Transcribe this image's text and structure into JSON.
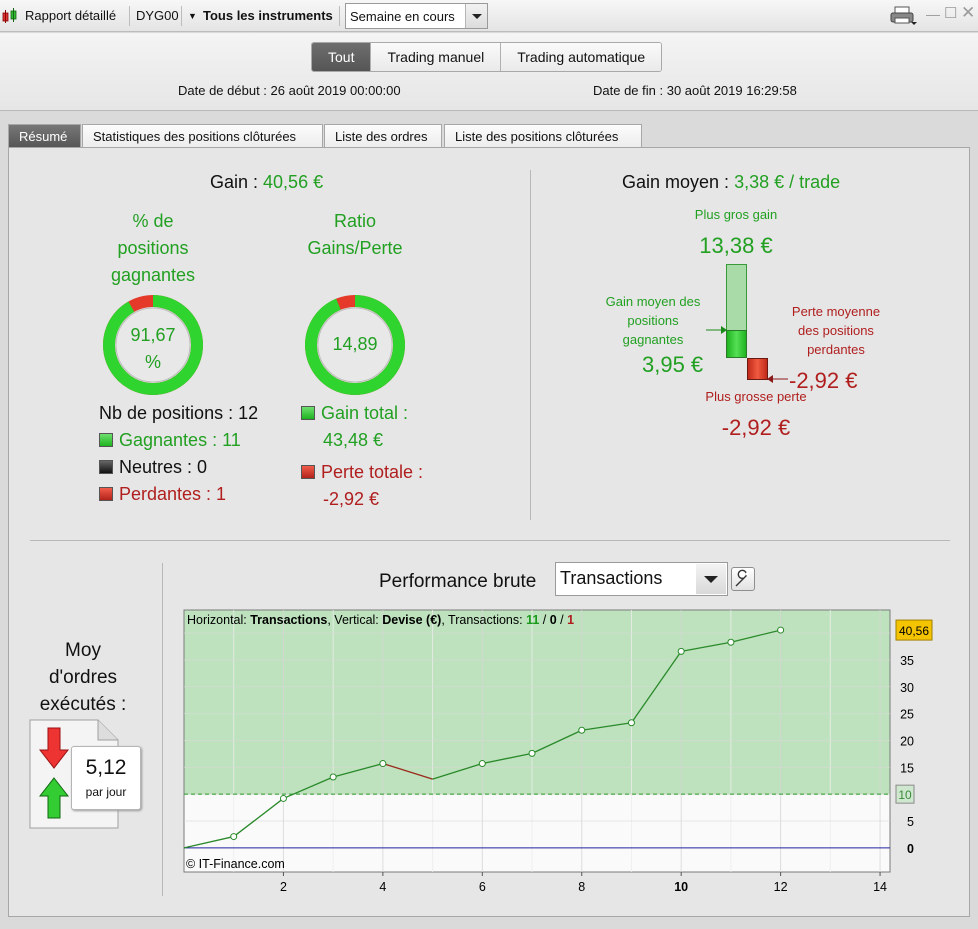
{
  "toolbar": {
    "report_label": "Rapport détaillé",
    "account": "DYG00",
    "instruments": "Tous les instruments",
    "period": "Semaine en cours"
  },
  "mode_tabs": [
    "Tout",
    "Trading manuel",
    "Trading automatique"
  ],
  "dates": {
    "start": "Date de début : 26 août 2019 00:00:00",
    "end": "Date de fin : 30 août 2019 16:29:58"
  },
  "tabs": [
    "Résumé",
    "Statistiques des positions clôturées",
    "Liste des ordres",
    "Liste des positions clôturées"
  ],
  "gain": {
    "label": "Gain : ",
    "value": "40,56 €"
  },
  "win_pct": {
    "title_lines": [
      "% de",
      "positions",
      "gagnantes"
    ],
    "value_lines": [
      "91,67",
      "%"
    ],
    "fraction": 0.9167
  },
  "ratio": {
    "title_lines": [
      "Ratio",
      "Gains/Perte"
    ],
    "value": "14,89",
    "fraction": 0.937
  },
  "counts": {
    "total": "Nb de positions : 12",
    "winners": "Gagnantes : 11",
    "neutral": "Neutres : 0",
    "losers": "Perdantes : 1"
  },
  "totals": {
    "gain_label": "Gain total :",
    "gain_value": "43,48 €",
    "loss_label": "Perte totale :",
    "loss_value": "-2,92 €"
  },
  "avg_gain": {
    "label": "Gain moyen : ",
    "value": "3,38 € / trade"
  },
  "bars": {
    "max_gain_label": "Plus gros gain",
    "max_gain_value": "13,38 €",
    "avg_win_lines": [
      "Gain moyen des",
      "positions",
      "gagnantes"
    ],
    "avg_win_value": "3,95 €",
    "avg_loss_lines": [
      "Perte moyenne",
      "des positions",
      "perdantes"
    ],
    "avg_loss_value": "-2,92 €",
    "max_loss_label": "Plus grosse perte",
    "max_loss_value": "-2,92 €"
  },
  "orders": {
    "title_lines": [
      "Moy",
      "d'ordres",
      "exécutés :"
    ],
    "value": "5,12",
    "unit": "par jour"
  },
  "perf": {
    "title": "Performance brute",
    "select": "Transactions"
  },
  "chart_data": {
    "type": "line",
    "header_parts": [
      "Horizontal: ",
      "Transactions",
      ", Vertical: ",
      "Devise (€)",
      ", Transactions: ",
      "11",
      " / ",
      "0",
      " / ",
      "1"
    ],
    "x": [
      0,
      1,
      2,
      3,
      4,
      5,
      6,
      7,
      8,
      9,
      10,
      11,
      12
    ],
    "y": [
      0,
      2.1,
      9.2,
      13.2,
      15.7,
      12.8,
      15.7,
      17.6,
      21.9,
      23.3,
      36.6,
      38.3,
      40.56
    ],
    "loss_segment": [
      4,
      5
    ],
    "last_value": "40,56",
    "threshold": 10,
    "threshold_label": "10",
    "xlim": [
      0,
      14.2
    ],
    "ylim": [
      -4.5,
      44.3
    ],
    "x_ticks": [
      "2",
      "4",
      "6",
      "8",
      "10",
      "12",
      "14"
    ],
    "y_ticks": [
      "0",
      "5",
      "10",
      "15",
      "20",
      "25",
      "30",
      "35"
    ],
    "credit": "© IT-Finance.com"
  }
}
